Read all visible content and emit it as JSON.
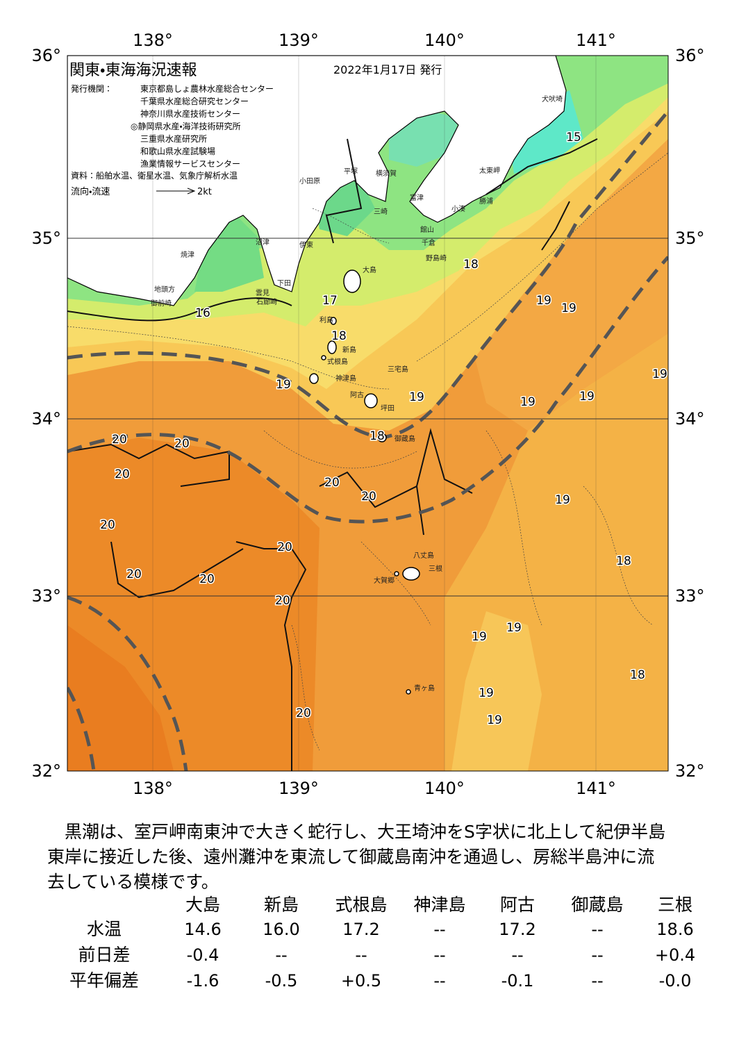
{
  "header": {
    "title": "関東・東海海況速報",
    "date": "2022年1月17日 発行",
    "issuer_label": "発行機関：",
    "issuers": [
      "東京都島しょ農林水産総合センター",
      "千葉県水産総合研究センター",
      "神奈川県水産技術センター",
      "◎静岡県水産・海洋技術研究所",
      "三重県水産研究所",
      "和歌山県水産試験場",
      "漁業情報サービスセンター"
    ],
    "source": "資料：船舶水温、衛星水温、気象庁解析水温",
    "flow_legend": "流向・流速",
    "flow_scale": "2kt"
  },
  "map": {
    "lon_labels": [
      "138°",
      "139°",
      "140°",
      "141°"
    ],
    "lat_labels": [
      "36°",
      "35°",
      "34°",
      "33°",
      "32°"
    ],
    "isotherm_labels": [
      "15",
      "16",
      "17",
      "18",
      "18",
      "19",
      "19",
      "19",
      "19",
      "19",
      "19",
      "19",
      "18",
      "20",
      "20",
      "20",
      "20",
      "20",
      "19",
      "20",
      "20",
      "18",
      "20",
      "20",
      "20",
      "19",
      "19",
      "18",
      "19",
      "19",
      "20"
    ],
    "place_names": [
      "犬吠埼",
      "太東岬",
      "勝浦",
      "小湊",
      "館山",
      "千倉",
      "野島崎",
      "富津",
      "横須賀",
      "平塚",
      "小田原",
      "三崎",
      "大島",
      "伊東",
      "下田",
      "雲見",
      "石廊崎",
      "地頭方",
      "御前崎",
      "焼津",
      "沼津",
      "利島",
      "新島",
      "式根島",
      "神津島",
      "三宅島",
      "阿古",
      "坪田",
      "御蔵島",
      "八丈島",
      "三根",
      "大賀郷",
      "青ヶ島"
    ]
  },
  "summary": [
    "黒潮は、室戸岬南東沖で大きく蛇行し、大王埼沖をS字状に北上して紀伊半島",
    "東岸に接近した後、遠州灘沖を東流して御蔵島南沖を通過し、房総半島沖に流",
    "去している模様です。"
  ],
  "table": {
    "columns": [
      "大島",
      "新島",
      "式根島",
      "神津島",
      "阿古",
      "御蔵島",
      "三根"
    ],
    "rows": [
      {
        "label": "水温",
        "cells": [
          "14.6",
          "16.0",
          "17.2",
          "--",
          "17.2",
          "--",
          "18.6"
        ]
      },
      {
        "label": "前日差",
        "cells": [
          "-0.4",
          "--",
          "--",
          "--",
          "--",
          "--",
          "+0.4"
        ]
      },
      {
        "label": "平年偏差",
        "cells": [
          "-1.6",
          "-0.5",
          "+0.5",
          "--",
          "-0.1",
          "--",
          "-0.0"
        ]
      }
    ]
  }
}
